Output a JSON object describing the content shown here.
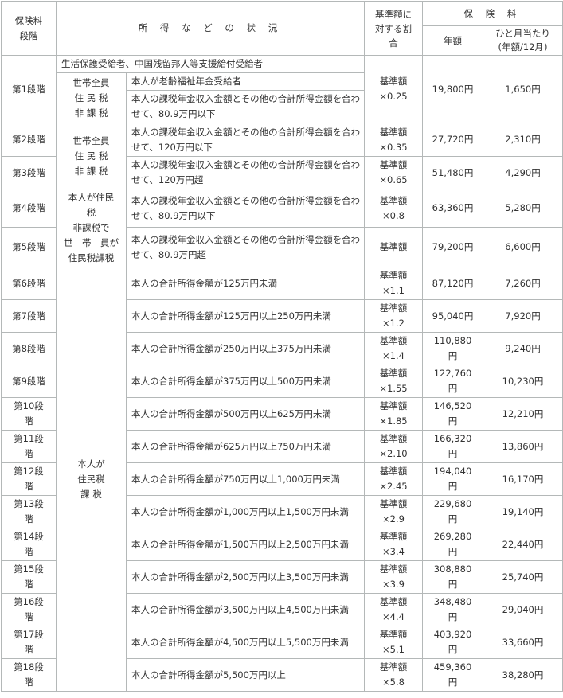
{
  "header": {
    "grade": "保険料\n段階",
    "status": "所 得 な ど の 状 況",
    "ratio": "基準額に\n対する割\n合",
    "premium": "保 険 料",
    "annual": "年額",
    "monthly": "ひと月当たり\n(年額/12月)"
  },
  "groups": {
    "g1_welfare": "生活保護受給者、中国残留邦人等支援給付受給者",
    "g1_household": "世帯全員\n住 民 税\n非 課 税",
    "g23_household": "世帯全員\n住 民 税\n非 課 税",
    "g45_household": "本人が住民\n税\n非課税で\n世　帯　員が\n住民税課税",
    "g6_18_household": "本人が\n住民税\n課 税"
  },
  "rows": [
    {
      "grade": "第1段階",
      "conditions": [
        "本人が老齢福祉年金受給者",
        "本人の課税年金収入金額とその他の合計所得金額を合わせて、80.9万円以下"
      ],
      "ratio": "基準額\n×0.25",
      "annual": "19,800円",
      "monthly": "1,650円"
    },
    {
      "grade": "第2段階",
      "condition": "本人の課税年金収入金額とその他の合計所得金額を合わせて、120万円以下",
      "ratio": "基準額\n×0.35",
      "annual": "27,720円",
      "monthly": "2,310円"
    },
    {
      "grade": "第3段階",
      "condition": "本人の課税年金収入金額とその他の合計所得金額を合わせて、120万円超",
      "ratio": "基準額\n×0.65",
      "annual": "51,480円",
      "monthly": "4,290円"
    },
    {
      "grade": "第4段階",
      "condition": "本人の課税年金収入金額とその他の合計所得金額を合わせて、80.9万円以下",
      "ratio": "基準額\n×0.8",
      "annual": "63,360円",
      "monthly": "5,280円"
    },
    {
      "grade": "第5段階",
      "condition": "本人の課税年金収入金額とその他の合計所得金額を合わせて、80.9万円超",
      "ratio": "基準額",
      "annual": "79,200円",
      "monthly": "6,600円"
    },
    {
      "grade": "第6段階",
      "condition": "本人の合計所得金額が125万円未満",
      "ratio": "基準額\n×1.1",
      "annual": "87,120円",
      "monthly": "7,260円"
    },
    {
      "grade": "第7段階",
      "condition": "本人の合計所得金額が125万円以上250万円未満",
      "ratio": "基準額\n×1.2",
      "annual": "95,040円",
      "monthly": "7,920円"
    },
    {
      "grade": "第8段階",
      "condition": "本人の合計所得金額が250万円以上375万円未満",
      "ratio": "基準額\n×1.4",
      "annual": "110,880\n円",
      "monthly": "9,240円"
    },
    {
      "grade": "第9段階",
      "condition": "本人の合計所得金額が375万円以上500万円未満",
      "ratio": "基準額\n×1.55",
      "annual": "122,760\n円",
      "monthly": "10,230円"
    },
    {
      "grade": "第10段\n階",
      "condition": "本人の合計所得金額が500万円以上625万円未満",
      "ratio": "基準額\n×1.85",
      "annual": "146,520\n円",
      "monthly": "12,210円"
    },
    {
      "grade": "第11段\n階",
      "condition": "本人の合計所得金額が625万円以上750万円未満",
      "ratio": "基準額\n×2.10",
      "annual": "166,320\n円",
      "monthly": "13,860円"
    },
    {
      "grade": "第12段\n階",
      "condition": "本人の合計所得金額が750万円以上1,000万円未満",
      "ratio": "基準額\n×2.45",
      "annual": "194,040\n円",
      "monthly": "16,170円"
    },
    {
      "grade": "第13段\n階",
      "condition": "本人の合計所得金額が1,000万円以上1,500万円未満",
      "ratio": "基準額\n×2.9",
      "annual": "229,680\n円",
      "monthly": "19,140円"
    },
    {
      "grade": "第14段\n階",
      "condition": "本人の合計所得金額が1,500万円以上2,500万円未満",
      "ratio": "基準額\n×3.4",
      "annual": "269,280\n円",
      "monthly": "22,440円"
    },
    {
      "grade": "第15段\n階",
      "condition": "本人の合計所得金額が2,500万円以上3,500万円未満",
      "ratio": "基準額\n×3.9",
      "annual": "308,880\n円",
      "monthly": "25,740円"
    },
    {
      "grade": "第16段\n階",
      "condition": "本人の合計所得金額が3,500万円以上4,500万円未満",
      "ratio": "基準額\n×4.4",
      "annual": "348,480\n円",
      "monthly": "29,040円"
    },
    {
      "grade": "第17段\n階",
      "condition": "本人の合計所得金額が4,500万円以上5,500万円未満",
      "ratio": "基準額\n×5.1",
      "annual": "403,920\n円",
      "monthly": "33,660円"
    },
    {
      "grade": "第18段\n階",
      "condition": "本人の合計所得金額が5,500万円以上",
      "ratio": "基準額\n×5.8",
      "annual": "459,360\n円",
      "monthly": "38,280円"
    }
  ]
}
